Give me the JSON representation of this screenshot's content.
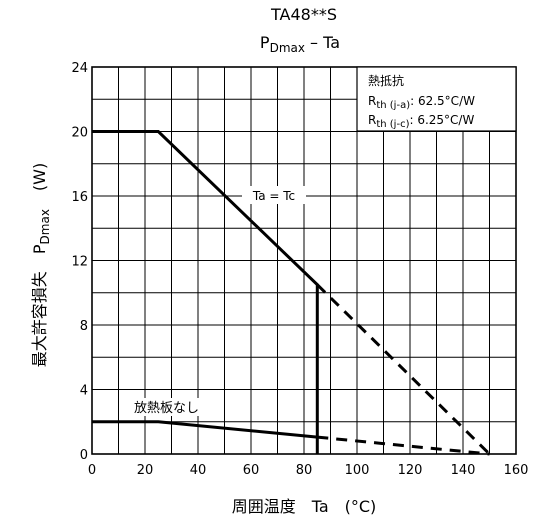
{
  "chart_data": {
    "type": "line",
    "title_main": "TA48**S",
    "title_sub_base": "P",
    "title_sub_subscript": "Dmax",
    "title_sub_tail": " – Ta",
    "xlabel": "周囲温度　Ta　(°C)",
    "ylabel_jp": "最大許容損失",
    "ylabel_sym_base": "P",
    "ylabel_sym_subscript": "Dmax",
    "ylabel_unit": "(W)",
    "xlim": [
      0,
      160
    ],
    "ylim": [
      0,
      24
    ],
    "x_ticks": [
      "0",
      "20",
      "40",
      "60",
      "80",
      "100",
      "120",
      "140",
      "160"
    ],
    "y_ticks": [
      "0",
      "4",
      "8",
      "12",
      "16",
      "20",
      "24"
    ],
    "grid": true,
    "grid_x_step": 10,
    "grid_y_step": 2,
    "series": [
      {
        "name": "Ta = Tc",
        "style": "solid",
        "points": [
          [
            0,
            20
          ],
          [
            25,
            20
          ],
          [
            85,
            10.5
          ],
          [
            85,
            0
          ]
        ]
      },
      {
        "name": "Ta = Tc",
        "style": "dashed",
        "points": [
          [
            85,
            10.5
          ],
          [
            150,
            0
          ]
        ]
      },
      {
        "name": "放熱板なし",
        "style": "solid",
        "points": [
          [
            0,
            2
          ],
          [
            25,
            2
          ],
          [
            85,
            1.05
          ]
        ]
      },
      {
        "name": "放熱板なし",
        "style": "dashed",
        "points": [
          [
            85,
            1.05
          ],
          [
            150,
            0
          ]
        ]
      }
    ],
    "annotations": {
      "tc_label": "Ta = Tc",
      "noheatsink_label": "放熱板なし",
      "thermal_box": {
        "title": "熱抵抗",
        "r_ja_base": "R",
        "r_ja_sub": "th (j-a)",
        "r_ja_value": ": 62.5°C/W",
        "r_jc_base": "R",
        "r_jc_sub": "th (j-c)",
        "r_jc_value": ": 6.25°C/W"
      }
    }
  }
}
